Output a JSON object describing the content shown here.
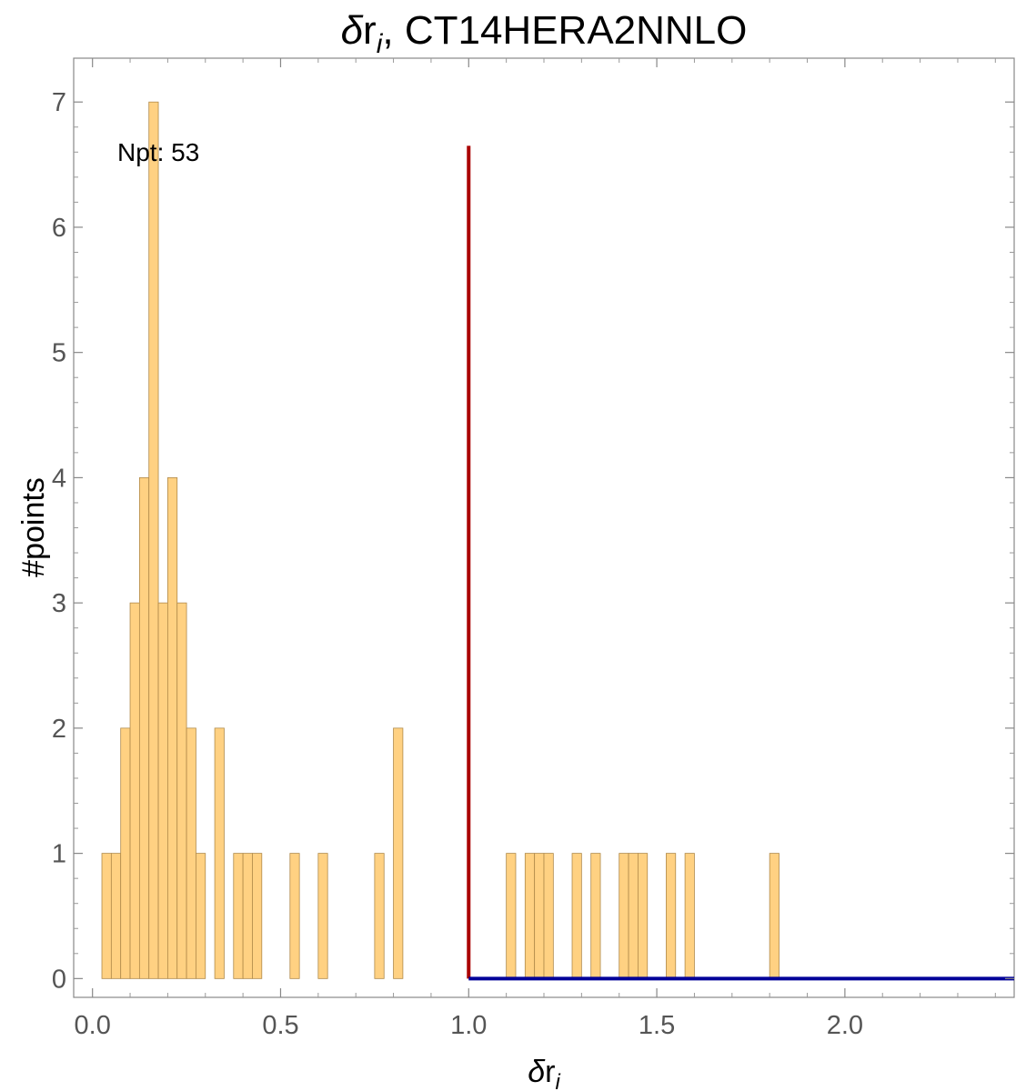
{
  "chart_data": {
    "type": "bar",
    "title": {
      "main": "δr",
      "sub": "i",
      "suffix": ", CT14HERA2NNLO"
    },
    "xlabel": {
      "main": "δr",
      "sub": "i"
    },
    "ylabel": "#points",
    "annotation": "Npt: 53",
    "xlim": [
      -0.05,
      2.45
    ],
    "ylim": [
      -0.15,
      7.35
    ],
    "bin_width": 0.025,
    "x_ticks": [
      "0.0",
      "0.5",
      "1.0",
      "1.5",
      "2.0"
    ],
    "y_ticks": [
      "0",
      "1",
      "2",
      "3",
      "4",
      "5",
      "6",
      "7"
    ],
    "bins": [
      {
        "x": 0.025,
        "count": 1
      },
      {
        "x": 0.05,
        "count": 1
      },
      {
        "x": 0.075,
        "count": 2
      },
      {
        "x": 0.1,
        "count": 3
      },
      {
        "x": 0.125,
        "count": 4
      },
      {
        "x": 0.15,
        "count": 7
      },
      {
        "x": 0.175,
        "count": 3
      },
      {
        "x": 0.2,
        "count": 4
      },
      {
        "x": 0.225,
        "count": 3
      },
      {
        "x": 0.25,
        "count": 2
      },
      {
        "x": 0.275,
        "count": 1
      },
      {
        "x": 0.325,
        "count": 2
      },
      {
        "x": 0.375,
        "count": 1
      },
      {
        "x": 0.4,
        "count": 1
      },
      {
        "x": 0.425,
        "count": 1
      },
      {
        "x": 0.525,
        "count": 1
      },
      {
        "x": 0.6,
        "count": 1
      },
      {
        "x": 0.75,
        "count": 1
      },
      {
        "x": 0.8,
        "count": 2
      },
      {
        "x": 1.1,
        "count": 1
      },
      {
        "x": 1.15,
        "count": 1
      },
      {
        "x": 1.175,
        "count": 1
      },
      {
        "x": 1.2,
        "count": 1
      },
      {
        "x": 1.275,
        "count": 1
      },
      {
        "x": 1.325,
        "count": 1
      },
      {
        "x": 1.4,
        "count": 1
      },
      {
        "x": 1.425,
        "count": 1
      },
      {
        "x": 1.45,
        "count": 1
      },
      {
        "x": 1.525,
        "count": 1
      },
      {
        "x": 1.575,
        "count": 1
      },
      {
        "x": 1.8,
        "count": 1
      }
    ],
    "reference_lines": [
      {
        "kind": "vertical",
        "x": 1.0,
        "y_range": [
          0,
          6.65
        ],
        "color": "#aa0000"
      },
      {
        "kind": "horizontal",
        "y": 0,
        "x_range": [
          1.0,
          2.45
        ],
        "color": "#000099"
      }
    ],
    "bar_fill": "#ffd182",
    "bar_stroke": "#b08a4a"
  }
}
